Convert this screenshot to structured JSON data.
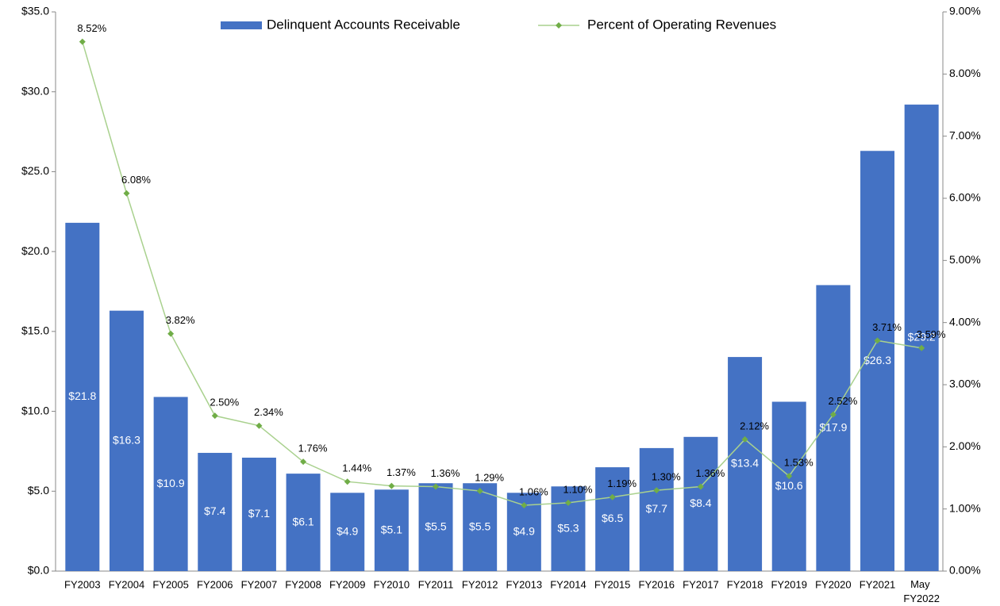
{
  "chart_data": {
    "type": "bar",
    "categories": [
      "FY2003",
      "FY2004",
      "FY2005",
      "FY2006",
      "FY2007",
      "FY2008",
      "FY2009",
      "FY2010",
      "FY2011",
      "FY2012",
      "FY2013",
      "FY2014",
      "FY2015",
      "FY2016",
      "FY2017",
      "FY2018",
      "FY2019",
      "FY2020",
      "FY2021",
      "May FY2022"
    ],
    "series": [
      {
        "name": "Delinquent Accounts Receivable",
        "type": "bar",
        "color": "#4472c4",
        "values": [
          21.8,
          16.3,
          10.9,
          7.4,
          7.1,
          6.1,
          4.9,
          5.1,
          5.5,
          5.5,
          4.9,
          5.3,
          6.5,
          7.7,
          8.4,
          13.4,
          10.6,
          17.9,
          26.3,
          29.2
        ],
        "value_labels": [
          "$21.8",
          "$16.3",
          "$10.9",
          "$7.4",
          "$7.1",
          "$6.1",
          "$4.9",
          "$5.1",
          "$5.5",
          "$5.5",
          "$4.9",
          "$5.3",
          "$6.5",
          "$7.7",
          "$8.4",
          "$13.4",
          "$10.6",
          "$17.9",
          "$26.3",
          "$29.2"
        ]
      },
      {
        "name": "Percent of Operating Revenues",
        "type": "line",
        "axis": "y2",
        "color": "#a9d18e",
        "marker_color": "#70ad47",
        "values": [
          8.52,
          6.08,
          3.82,
          2.5,
          2.34,
          1.76,
          1.44,
          1.37,
          1.36,
          1.29,
          1.06,
          1.1,
          1.19,
          1.3,
          1.36,
          2.12,
          1.53,
          2.52,
          3.71,
          3.59
        ],
        "value_labels": [
          "8.52%",
          "6.08%",
          "3.82%",
          "2.50%",
          "2.34%",
          "1.76%",
          "1.44%",
          "1.37%",
          "1.36%",
          "1.29%",
          "1.06%",
          "1.10%",
          "1.19%",
          "1.30%",
          "1.36%",
          "2.12%",
          "1.53%",
          "2.52%",
          "3.71%",
          "3.59%"
        ]
      }
    ],
    "ylim": [
      0,
      35
    ],
    "yticks": [
      {
        "value": 0,
        "label": "$0.0"
      },
      {
        "value": 5,
        "label": "$5.0"
      },
      {
        "value": 10,
        "label": "$10.0"
      },
      {
        "value": 15,
        "label": "$15.0"
      },
      {
        "value": 20,
        "label": "$20.0"
      },
      {
        "value": 25,
        "label": "$25.0"
      },
      {
        "value": 30,
        "label": "$30.0"
      },
      {
        "value": 35,
        "label": "$35.0"
      }
    ],
    "y2lim": [
      0,
      9
    ],
    "y2ticks": [
      {
        "value": 0,
        "label": "0.00%"
      },
      {
        "value": 1,
        "label": "1.00%"
      },
      {
        "value": 2,
        "label": "2.00%"
      },
      {
        "value": 3,
        "label": "3.00%"
      },
      {
        "value": 4,
        "label": "4.00%"
      },
      {
        "value": 5,
        "label": "5.00%"
      },
      {
        "value": 6,
        "label": "6.00%"
      },
      {
        "value": 7,
        "label": "7.00%"
      },
      {
        "value": 8,
        "label": "8.00%"
      },
      {
        "value": 9,
        "label": "9.00%"
      }
    ],
    "legend": "top",
    "grid": false
  }
}
